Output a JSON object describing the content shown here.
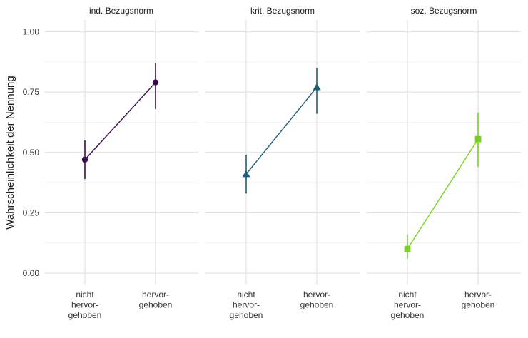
{
  "chart_data": {
    "type": "point-range-line",
    "ylabel": "Wahrscheinlichkeit der Nennung",
    "ylim": [
      0,
      1.05
    ],
    "y_ticks": [
      "0.00",
      "0.25",
      "0.50",
      "0.75",
      "1.00"
    ],
    "y_tick_values": [
      0,
      0.25,
      0.5,
      0.75,
      1.0
    ],
    "grid": true,
    "categories": [
      [
        "nicht",
        "hervor-",
        "gehoben"
      ],
      [
        "hervor-",
        "gehoben"
      ]
    ],
    "facets": [
      {
        "label": "ind. Bezugsnorm",
        "color": "#3b0f4f",
        "marker": "circle",
        "points": [
          {
            "estimate": 0.47,
            "lower": 0.39,
            "upper": 0.55
          },
          {
            "estimate": 0.79,
            "lower": 0.68,
            "upper": 0.87
          }
        ]
      },
      {
        "label": "krit. Bezugsnorm",
        "color": "#1d5f76",
        "marker": "triangle",
        "points": [
          {
            "estimate": 0.41,
            "lower": 0.33,
            "upper": 0.49
          },
          {
            "estimate": 0.77,
            "lower": 0.66,
            "upper": 0.85
          }
        ]
      },
      {
        "label": "soz. Bezugsnorm",
        "color": "#7ccf23",
        "marker": "square",
        "points": [
          {
            "estimate": 0.1,
            "lower": 0.06,
            "upper": 0.16
          },
          {
            "estimate": 0.555,
            "lower": 0.44,
            "upper": 0.665
          }
        ]
      }
    ]
  }
}
